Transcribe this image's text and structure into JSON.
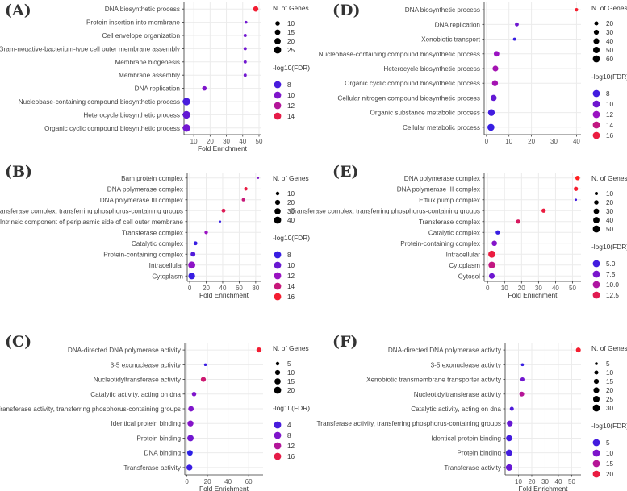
{
  "panels": [
    {
      "label": "(A)",
      "xlabel": "Fold Enrichment",
      "xlim": [
        4,
        51
      ],
      "xticks": [
        10,
        20,
        30,
        40,
        50
      ],
      "categories": [
        "DNA biosynthetic process",
        "Protein insertion into membrane",
        "Cell envelope organization",
        "Gram-negative-bacterium-type cell outer membrane assembly",
        "Membrane biogenesis",
        "Membrane assembly",
        "DNA replication",
        "Nucleobase-containing compound biosynthetic process",
        "Heterocycle biosynthetic process",
        "Organic cyclic compound biosynthetic process"
      ],
      "fold": [
        48,
        42,
        41.5,
        41.5,
        41.5,
        41.5,
        16.5,
        5.5,
        5.5,
        5.5
      ],
      "genes": [
        14,
        4,
        5,
        5,
        5,
        5,
        10,
        28,
        28,
        28
      ],
      "fdr": [
        14.5,
        9.5,
        9.5,
        9.5,
        9.5,
        9.5,
        10,
        8,
        9,
        9.5
      ],
      "size_title": "N. of Genes",
      "size_legend": [
        10,
        15,
        20,
        25
      ],
      "color_title": "-log10(FDR)",
      "color_legend": [
        8,
        10,
        12,
        14
      ],
      "fdr_range": [
        7,
        15
      ]
    },
    {
      "label": "(B)",
      "xlabel": "Fold Enrichment",
      "xlim": [
        -3,
        86
      ],
      "xticks": [
        0,
        20,
        40,
        60,
        80
      ],
      "categories": [
        "Bam protein complex",
        "DNA polymerase complex",
        "DNA polymerase III complex",
        "Transferase complex, transferring phosphorus-containing groups",
        "Intrinsic component of periplasmic side of cell outer membrane",
        "Transferase complex",
        "Catalytic complex",
        "Protein-containing complex",
        "Intracellular",
        "Cytoplasm"
      ],
      "fold": [
        83,
        68,
        65,
        41,
        37,
        20,
        7,
        4,
        2.5,
        2.5
      ],
      "genes": [
        3,
        10,
        8,
        12,
        3,
        10,
        12,
        18,
        40,
        36
      ],
      "fdr": [
        11,
        15.5,
        14,
        15,
        8,
        12,
        8,
        9,
        11.5,
        8
      ],
      "size_title": "N. of Genes",
      "size_legend": [
        10,
        20,
        30,
        40
      ],
      "color_title": "-log10(FDR)",
      "color_legend": [
        8,
        10,
        12,
        14,
        16
      ],
      "fdr_range": [
        7.5,
        16.5
      ]
    },
    {
      "label": "(C)",
      "xlabel": "Fold Enrichment",
      "xlim": [
        -2,
        74
      ],
      "xticks": [
        0,
        20,
        40,
        60
      ],
      "categories": [
        "DNA-directed DNA polymerase activity",
        "3-5 exonuclease activity",
        "Nucleotidyltransferase activity",
        "Catalytic activity, acting on dna",
        "Transferase activity, transferring phosphorus-containing groups",
        "Identical protein binding",
        "Protein binding",
        "DNA binding",
        "Transferase activity"
      ],
      "fold": [
        70,
        18,
        16,
        7,
        4,
        3.5,
        3.5,
        3,
        2.5
      ],
      "genes": [
        10,
        3,
        10,
        8,
        12,
        14,
        16,
        12,
        14
      ],
      "fdr": [
        17,
        3,
        14,
        8,
        8,
        8.5,
        7,
        2,
        3
      ],
      "size_title": "N. of Genes",
      "size_legend": [
        5,
        10,
        15,
        20
      ],
      "color_title": "-log10(FDR)",
      "color_legend": [
        4,
        8,
        12,
        16
      ],
      "fdr_range": [
        2,
        18
      ]
    },
    {
      "label": "(D)",
      "xlabel": "",
      "xlim": [
        -1,
        42
      ],
      "xticks": [
        0,
        10,
        20,
        30,
        40
      ],
      "categories": [
        "DNA biosynthetic process",
        "DNA replication",
        "Xenobiotic transport",
        "Nucleobase-containing compound biosynthetic process",
        "Heterocycle biosynthetic process",
        "Organic cyclic compound biosynthetic process",
        "Cellular nitrogen compound biosynthetic process",
        "Organic substance metabolic process",
        "Cellular metabolic process"
      ],
      "fold": [
        40,
        13.5,
        12.5,
        4.5,
        4,
        3.8,
        3.2,
        2.2,
        2
      ],
      "genes": [
        14,
        18,
        12,
        36,
        40,
        42,
        44,
        54,
        58
      ],
      "fdr": [
        16.5,
        10,
        7.5,
        12,
        12.5,
        12.5,
        9.5,
        8,
        7.5
      ],
      "size_title": "N. of Genes",
      "size_legend": [
        20,
        30,
        40,
        50,
        60
      ],
      "color_title": "-log10(FDR)",
      "color_legend": [
        8,
        10,
        12,
        14,
        16
      ],
      "fdr_range": [
        7,
        17
      ]
    },
    {
      "label": "(E)",
      "xlabel": "Fold Enrichment",
      "xlim": [
        -2,
        55
      ],
      "xticks": [
        0,
        10,
        20,
        30,
        40,
        50
      ],
      "categories": [
        "DNA polymerase complex",
        "DNA polymerase III complex",
        "Efflux pump complex",
        "Transferase complex, transferring phosphorus-containing groups",
        "Transferase complex",
        "Catalytic complex",
        "Protein-containing complex",
        "Intracellular",
        "Cytoplasm",
        "Cytosol"
      ],
      "fold": [
        53,
        52,
        52,
        33,
        18,
        6,
        4,
        2.5,
        2.5,
        2.5
      ],
      "genes": [
        20,
        18,
        5,
        18,
        18,
        18,
        28,
        50,
        45,
        32
      ],
      "fdr": [
        14,
        13.5,
        5,
        13,
        12,
        4.5,
        8,
        13,
        11,
        7
      ],
      "size_title": "N. of Genes",
      "size_legend": [
        10,
        20,
        30,
        40,
        50
      ],
      "color_title": "-log10(FDR)",
      "color_legend": [
        5.0,
        7.5,
        10.0,
        12.5
      ],
      "color_legend_labels": [
        "5.0",
        "7.5",
        "10.0",
        "12.5"
      ],
      "fdr_range": [
        4,
        14
      ]
    },
    {
      "label": "(F)",
      "xlabel": "Fold Enrichment",
      "xlim": [
        0,
        57
      ],
      "xticks": [
        10,
        20,
        30,
        40,
        50
      ],
      "categories": [
        "DNA-directed DNA polymerase activity",
        "3-5 exonuclease activity",
        "Xenobiotic transmembrane transporter activity",
        "Nucleotidyltransferase activity",
        "Catalytic activity, acting on dna",
        "Transferase activity, transferring phosphorus-containing groups",
        "Identical protein binding",
        "Protein binding",
        "Transferase activity"
      ],
      "fold": [
        55,
        13,
        13,
        12.5,
        5,
        3.5,
        3,
        3,
        3
      ],
      "genes": [
        14,
        5,
        10,
        14,
        10,
        20,
        22,
        25,
        25
      ],
      "fdr": [
        21,
        4,
        9,
        15,
        6,
        8,
        5,
        5,
        8
      ],
      "size_title": "N. of Genes",
      "size_legend": [
        5,
        10,
        15,
        20,
        25,
        30
      ],
      "color_title": "-log10(FDR)",
      "color_legend": [
        5,
        10,
        15,
        20
      ],
      "fdr_range": [
        3,
        22
      ]
    }
  ],
  "chart_data": [
    {
      "type": "scatter",
      "title": "(A)",
      "xlabel": "Fold Enrichment",
      "ylabel": "",
      "size_by": "N. of Genes",
      "color_by": "-log10(FDR)"
    },
    {
      "type": "scatter",
      "title": "(B)",
      "xlabel": "Fold Enrichment",
      "ylabel": "",
      "size_by": "N. of Genes",
      "color_by": "-log10(FDR)"
    },
    {
      "type": "scatter",
      "title": "(C)",
      "xlabel": "Fold Enrichment",
      "ylabel": "",
      "size_by": "N. of Genes",
      "color_by": "-log10(FDR)"
    },
    {
      "type": "scatter",
      "title": "(D)",
      "xlabel": "",
      "ylabel": "",
      "size_by": "N. of Genes",
      "color_by": "-log10(FDR)"
    },
    {
      "type": "scatter",
      "title": "(E)",
      "xlabel": "Fold Enrichment",
      "ylabel": "",
      "size_by": "N. of Genes",
      "color_by": "-log10(FDR)"
    },
    {
      "type": "scatter",
      "title": "(F)",
      "xlabel": "Fold Enrichment",
      "ylabel": "",
      "size_by": "N. of Genes",
      "color_by": "-log10(FDR)"
    }
  ],
  "colors": {
    "low": "#2c1fe6",
    "mid": "#9a12c2",
    "high": "#ff1f1f",
    "grid": "#ebebeb",
    "axis": "#333333",
    "dot": "#000000"
  }
}
